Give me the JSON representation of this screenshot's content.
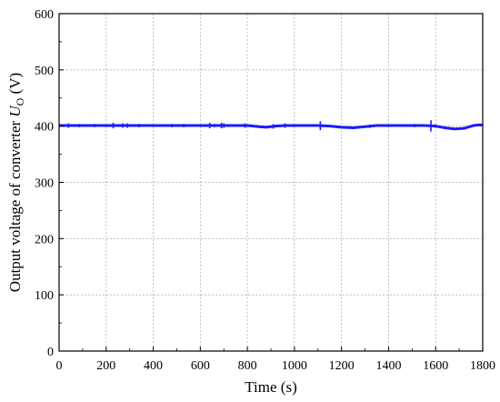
{
  "chart_data": {
    "type": "line",
    "title": "",
    "xlabel": "Time (s)",
    "ylabel_prefix": "Output voltage of converter ",
    "ylabel_symbol": "U",
    "ylabel_subscript": "O",
    "ylabel_unit": " (V)",
    "xlim": [
      0,
      1800
    ],
    "ylim": [
      0,
      600
    ],
    "xticks": [
      "0",
      "200",
      "400",
      "600",
      "800",
      "1000",
      "1200",
      "1400",
      "1600",
      "1800"
    ],
    "yticks": [
      "0",
      "100",
      "200",
      "300",
      "400",
      "500",
      "600"
    ],
    "grid": true,
    "legend": "none",
    "series": [
      {
        "color": "#1a1aff",
        "x": [
          0,
          100,
          200,
          300,
          400,
          500,
          600,
          700,
          800,
          850,
          880,
          920,
          960,
          1000,
          1050,
          1100,
          1150,
          1200,
          1250,
          1300,
          1350,
          1400,
          1450,
          1500,
          1550,
          1600,
          1640,
          1680,
          1720,
          1760,
          1780,
          1800
        ],
        "y": [
          401,
          401,
          401,
          401,
          401,
          401,
          401,
          401,
          401,
          399,
          398,
          400,
          401,
          401,
          401,
          401,
          400,
          398,
          397,
          399,
          401,
          401,
          401,
          401,
          401,
          400,
          397,
          395,
          396,
          401,
          402,
          402
        ]
      }
    ],
    "spikes": [
      {
        "x": 40,
        "dy": 4
      },
      {
        "x": 85,
        "dy": 3
      },
      {
        "x": 150,
        "dy": 3
      },
      {
        "x": 230,
        "dy": 5
      },
      {
        "x": 270,
        "dy": 4
      },
      {
        "x": 290,
        "dy": 4
      },
      {
        "x": 340,
        "dy": 3
      },
      {
        "x": 480,
        "dy": 3
      },
      {
        "x": 530,
        "dy": 3
      },
      {
        "x": 640,
        "dy": 5
      },
      {
        "x": 660,
        "dy": 3
      },
      {
        "x": 690,
        "dy": 5
      },
      {
        "x": 700,
        "dy": 4
      },
      {
        "x": 790,
        "dy": 4
      },
      {
        "x": 910,
        "dy": 4
      },
      {
        "x": 960,
        "dy": 4
      },
      {
        "x": 1110,
        "dy": 8
      },
      {
        "x": 1320,
        "dy": 3
      },
      {
        "x": 1510,
        "dy": 3
      },
      {
        "x": 1580,
        "dy": 10
      },
      {
        "x": 1600,
        "dy": 3
      }
    ]
  }
}
